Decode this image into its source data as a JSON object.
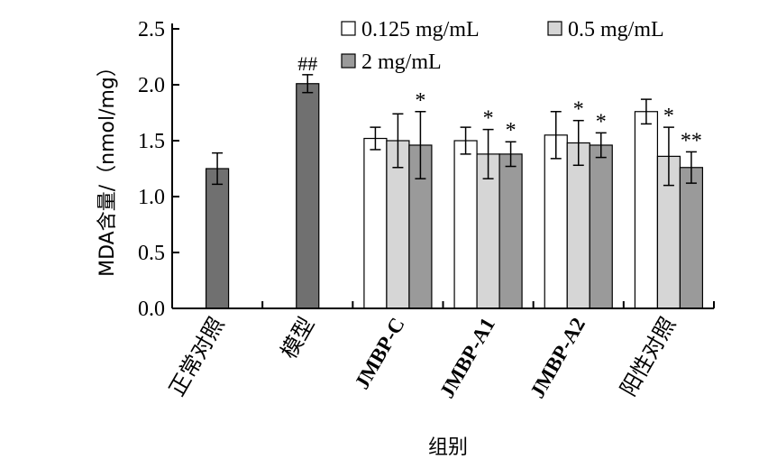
{
  "chart_data": {
    "type": "bar",
    "title": "",
    "xlabel": "组别",
    "ylabel": "MDA含量/（nmol/mg）",
    "ylim": [
      0,
      2.5
    ],
    "yticks": [
      "0.0",
      "0.5",
      "1.0",
      "1.5",
      "2.0",
      "2.5"
    ],
    "grid": false,
    "legend_position": "top-right",
    "categories": [
      "正常对照",
      "模型",
      "JMBP-C",
      "JMBP-A1",
      "JMBP-A2",
      "阳性对照"
    ],
    "single_series": {
      "color": "#707070",
      "points": [
        {
          "category": "正常对照",
          "value": 1.25,
          "error": 0.14,
          "mark": ""
        },
        {
          "category": "模型",
          "value": 2.01,
          "error": 0.08,
          "mark": "##"
        }
      ]
    },
    "series": [
      {
        "name": "0.125 mg/mL",
        "color": "#ffffff",
        "values": [
          null,
          null,
          1.52,
          1.5,
          1.55,
          1.76
        ],
        "errors": [
          null,
          null,
          0.1,
          0.12,
          0.21,
          0.11
        ],
        "marks": [
          "",
          "",
          "",
          "",
          "",
          ""
        ]
      },
      {
        "name": "0.5 mg/mL",
        "color": "#d6d6d6",
        "values": [
          null,
          null,
          1.5,
          1.38,
          1.48,
          1.36
        ],
        "errors": [
          null,
          null,
          0.24,
          0.22,
          0.2,
          0.26
        ],
        "marks": [
          "",
          "",
          "",
          "*",
          "*",
          "*"
        ]
      },
      {
        "name": "2 mg/mL",
        "color": "#9a9a9a",
        "values": [
          null,
          null,
          1.46,
          1.38,
          1.46,
          1.26
        ],
        "errors": [
          null,
          null,
          0.3,
          0.11,
          0.11,
          0.14
        ],
        "marks": [
          "",
          "",
          "*",
          "*",
          "*",
          "**"
        ]
      }
    ]
  }
}
